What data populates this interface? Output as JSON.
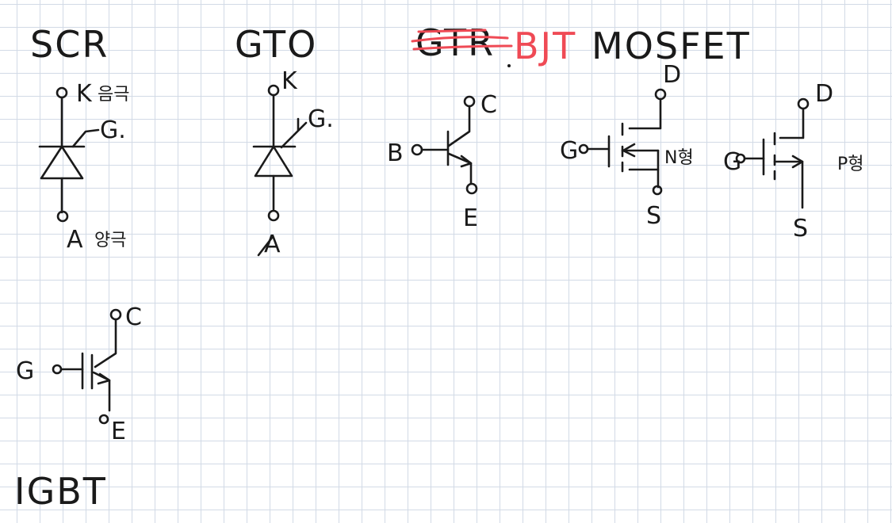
{
  "titles": {
    "scr": "SCR",
    "gto": "GTO",
    "gtr_struck": "GTR",
    "bjt": "BJT",
    "mosfet": "MOSFET",
    "igbt": "IGBT"
  },
  "scr": {
    "k": "K",
    "k_note": "음극",
    "g": "G.",
    "a": "A",
    "a_note": "양극"
  },
  "gto": {
    "k": "K",
    "g": "G.",
    "a": "A"
  },
  "bjt": {
    "c": "C",
    "b": "B",
    "e": "E"
  },
  "mosfet_n": {
    "d": "D",
    "g": "G",
    "s": "S",
    "type": "N형"
  },
  "mosfet_p": {
    "d": "D",
    "g": "G",
    "s": "S",
    "type": "P형"
  },
  "igbt": {
    "c": "C",
    "g": "G",
    "e": "E"
  },
  "colors": {
    "ink": "#1a1a1a",
    "correction": "#ef4a55",
    "grid": "#d2dae6"
  }
}
